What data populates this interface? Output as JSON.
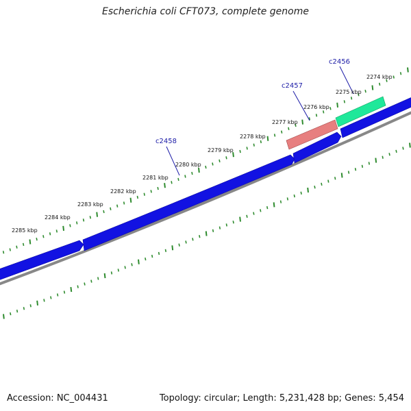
{
  "title": "Escherichia coli CFT073, complete genome",
  "footer": {
    "accession": "Accession: NC_004431",
    "summary": "Topology: circular; Length: 5,231,428 bp; Genes: 5,454"
  },
  "colors": {
    "forward_gene": "#1010e0",
    "backbone": "#888888",
    "ticks": "#2e8b2e",
    "label_line": "#1a1aa6",
    "gene_c2457": "#e77f7f",
    "gene_c2456": "#1fe89a"
  },
  "kbp_labels": [
    "2274 kbp",
    "2275 kbp",
    "2276 kbp",
    "2277 kbp",
    "2278 kbp",
    "2279 kbp",
    "2280 kbp",
    "2281 kbp",
    "2282 kbp",
    "2283 kbp",
    "2284 kbp",
    "2285 kbp"
  ],
  "gene_labels": [
    "c2456",
    "c2457",
    "c2458"
  ]
}
